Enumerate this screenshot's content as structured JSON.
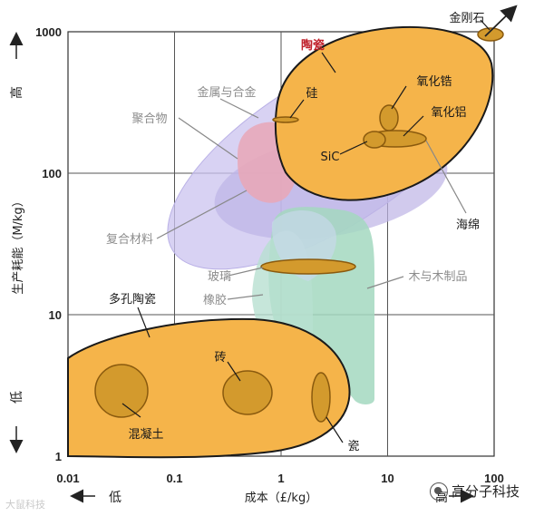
{
  "chart_data": {
    "type": "bubble-region",
    "x_scale": "log",
    "y_scale": "log",
    "xlim": [
      0.01,
      100
    ],
    "ylim": [
      1,
      1000
    ],
    "x_ticks": [
      "0.01",
      "0.1",
      "1",
      "10",
      "100"
    ],
    "y_ticks": [
      "1",
      "10",
      "100",
      "1000"
    ],
    "xlabel": "成本（£/kg）",
    "ylabel": "生产耗能（M/kg）",
    "x_low": "低",
    "x_high": "高",
    "y_low": "低",
    "y_high": "高",
    "grid": true,
    "regions": [
      {
        "name": "金属与合金",
        "color": "#c9c3ee",
        "x_range": [
          0.5,
          100
        ],
        "y_range": [
          30,
          1000
        ]
      },
      {
        "name": "聚合物",
        "color": "#e9a7b6",
        "x_range": [
          1,
          5
        ],
        "y_range": [
          60,
          200
        ]
      },
      {
        "name": "复合材料",
        "color": "#bdb4e3",
        "x_range": [
          1,
          12
        ],
        "y_range": [
          50,
          220
        ]
      },
      {
        "name": "玻璃",
        "color": "#a9d3c6",
        "x_range": [
          0.8,
          3
        ],
        "y_range": [
          4,
          50
        ]
      },
      {
        "name": "橡胶",
        "color": "#b3e0d0",
        "x_range": [
          1,
          4
        ],
        "y_range": [
          2,
          30
        ]
      },
      {
        "name": "木与木制品",
        "color": "#a3d8c0",
        "x_range": [
          1.5,
          10
        ],
        "y_range": [
          4,
          60
        ]
      },
      {
        "name": "海绵",
        "color": "#c2bcec",
        "x_range": [
          1,
          100
        ],
        "y_range": [
          20,
          800
        ]
      },
      {
        "name": "陶瓷",
        "color": "#f5b44a",
        "x_range": [
          1,
          50
        ],
        "y_range": [
          80,
          1000
        ]
      },
      {
        "name": "多孔陶瓷",
        "color": "#f5b44a",
        "x_range": [
          0.01,
          4
        ],
        "y_range": [
          1,
          10
        ]
      }
    ],
    "materials": [
      {
        "name": "金刚石",
        "x": 80,
        "y": 1000
      },
      {
        "name": "硅",
        "x": 1.5,
        "y": 220
      },
      {
        "name": "氧化锆",
        "x": 10,
        "y": 230
      },
      {
        "name": "氧化铝",
        "x": 12,
        "y": 170
      },
      {
        "name": "SiC",
        "x": 8,
        "y": 170
      },
      {
        "name": "砖",
        "x": 0.6,
        "y": 3
      },
      {
        "name": "混凝土",
        "x": 0.04,
        "y": 3
      },
      {
        "name": "瓷",
        "x": 4,
        "y": 3
      }
    ]
  },
  "watermark": {
    "left": "大鼠科技",
    "right": "高分子科技"
  }
}
